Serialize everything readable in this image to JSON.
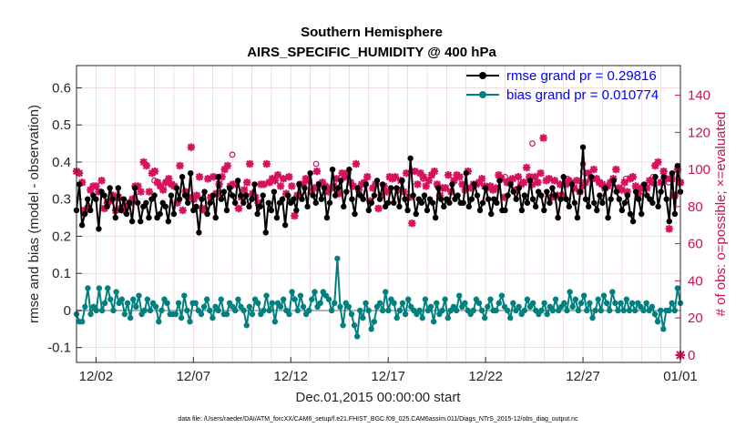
{
  "chart_data": {
    "type": "line",
    "title": "Southern Hemisphere",
    "subtitle": "AIRS_SPECIFIC_HUMIDITY @ 400 hPa",
    "xlabel": "Dec.01,2015 00:00:00 start",
    "ylabel": "rmse and bias (model - observation)",
    "ylabel_right": "# of obs: o=possible; ×=evaluated",
    "ylim": [
      -0.14,
      0.66
    ],
    "ylim_right": [
      -4,
      156
    ],
    "xlim": [
      0,
      31
    ],
    "left_ticks": [
      "-0.1",
      "0",
      "0.1",
      "0.2",
      "0.3",
      "0.4",
      "0.5",
      "0.6"
    ],
    "right_ticks": [
      "0",
      "20",
      "40",
      "60",
      "80",
      "100",
      "120",
      "140"
    ],
    "x_tick_labels": [
      "12/02",
      "12/07",
      "12/12",
      "12/17",
      "12/22",
      "12/27",
      "01/01"
    ],
    "x_tick_days": [
      1,
      6,
      11,
      16,
      21,
      26,
      31
    ],
    "grid": true,
    "legend_position": "top-right",
    "legend": [
      "rmse grand pr = 0.29816",
      "bias grand pr = 0.010774"
    ],
    "colors": {
      "rmse": "#000000",
      "bias": "#00807f",
      "obs": "#d6115e",
      "zero_line": "#b3b3b3",
      "grid": "#e8c9d3"
    },
    "rmse": [
      0.27,
      0.34,
      0.23,
      0.26,
      0.3,
      0.27,
      0.31,
      0.3,
      0.22,
      0.32,
      0.31,
      0.28,
      0.33,
      0.3,
      0.25,
      0.33,
      0.27,
      0.3,
      0.26,
      0.29,
      0.24,
      0.33,
      0.29,
      0.24,
      0.28,
      0.29,
      0.25,
      0.3,
      0.31,
      0.25,
      0.26,
      0.29,
      0.28,
      0.24,
      0.31,
      0.26,
      0.33,
      0.3,
      0.36,
      0.31,
      0.29,
      0.37,
      0.27,
      0.28,
      0.21,
      0.3,
      0.32,
      0.26,
      0.29,
      0.31,
      0.25,
      0.36,
      0.3,
      0.32,
      0.27,
      0.33,
      0.31,
      0.29,
      0.35,
      0.31,
      0.29,
      0.31,
      0.28,
      0.3,
      0.34,
      0.26,
      0.28,
      0.31,
      0.21,
      0.29,
      0.27,
      0.32,
      0.25,
      0.29,
      0.3,
      0.23,
      0.31,
      0.29,
      0.3,
      0.27,
      0.34,
      0.3,
      0.33,
      0.28,
      0.37,
      0.31,
      0.29,
      0.34,
      0.3,
      0.33,
      0.25,
      0.29,
      0.38,
      0.31,
      0.33,
      0.35,
      0.28,
      0.32,
      0.38,
      0.3,
      0.26,
      0.33,
      0.31,
      0.3,
      0.34,
      0.27,
      0.29,
      0.31,
      0.35,
      0.3,
      0.34,
      0.28,
      0.29,
      0.33,
      0.29,
      0.33,
      0.28,
      0.35,
      0.3,
      0.27,
      0.41,
      0.31,
      0.26,
      0.3,
      0.29,
      0.31,
      0.27,
      0.3,
      0.29,
      0.25,
      0.33,
      0.3,
      0.28,
      0.3,
      0.29,
      0.34,
      0.3,
      0.31,
      0.29,
      0.29,
      0.37,
      0.28,
      0.3,
      0.34,
      0.31,
      0.27,
      0.29,
      0.33,
      0.3,
      0.26,
      0.3,
      0.29,
      0.35,
      0.27,
      0.27,
      0.31,
      0.34,
      0.32,
      0.3,
      0.33,
      0.27,
      0.31,
      0.29,
      0.35,
      0.3,
      0.28,
      0.32,
      0.31,
      0.27,
      0.32,
      0.29,
      0.33,
      0.31,
      0.25,
      0.3,
      0.36,
      0.3,
      0.28,
      0.34,
      0.29,
      0.25,
      0.32,
      0.44,
      0.3,
      0.28,
      0.36,
      0.29,
      0.27,
      0.31,
      0.29,
      0.33,
      0.25,
      0.3,
      0.35,
      0.32,
      0.3,
      0.27,
      0.29,
      0.31,
      0.26,
      0.24,
      0.32,
      0.3,
      0.26,
      0.34,
      0.31,
      0.3,
      0.29,
      0.36,
      0.28,
      0.32,
      0.36,
      0.3,
      0.24,
      0.37,
      0.26,
      0.39,
      0.32
    ],
    "bias": [
      -0.01,
      -0.03,
      -0.03,
      0.01,
      0.06,
      -0.01,
      0.01,
      0.0,
      0.06,
      0.0,
      0.02,
      0.06,
      0.03,
      0.0,
      0.05,
      0.02,
      0.03,
      -0.01,
      0.02,
      -0.02,
      0.03,
      0.01,
      0.04,
      -0.01,
      0.0,
      0.03,
      0.0,
      0.02,
      0.01,
      -0.03,
      0.0,
      0.03,
      0.02,
      -0.01,
      -0.01,
      -0.01,
      0.02,
      -0.02,
      0.04,
      0.0,
      -0.03,
      0.02,
      0.02,
      0.0,
      -0.01,
      0.01,
      0.03,
      0.0,
      -0.02,
      0.01,
      0.0,
      0.03,
      -0.01,
      -0.01,
      0.02,
      0.01,
      0.0,
      0.03,
      0.01,
      0.0,
      -0.04,
      0.01,
      -0.01,
      0.03,
      0.02,
      -0.01,
      0.0,
      0.04,
      0.0,
      0.02,
      -0.03,
      0.02,
      0.01,
      0.03,
      0.0,
      -0.01,
      0.05,
      0.03,
      0.0,
      0.04,
      0.01,
      -0.01,
      0.0,
      0.03,
      0.05,
      0.01,
      0.02,
      0.05,
      0.04,
      0.03,
      0.0,
      0.02,
      0.14,
      0.01,
      -0.04,
      0.02,
      0.01,
      -0.01,
      -0.04,
      -0.07,
      0.0,
      -0.02,
      0.02,
      0.0,
      -0.05,
      -0.03,
      0.01,
      0.02,
      0.0,
      0.05,
      0.0,
      0.03,
      0.02,
      -0.02,
      0.0,
      0.02,
      -0.01,
      0.03,
      0.01,
      0.0,
      -0.01,
      0.0,
      -0.02,
      0.03,
      0.0,
      0.01,
      -0.03,
      0.02,
      -0.01,
      0.0,
      0.03,
      -0.02,
      0.0,
      0.01,
      0.0,
      0.04,
      0.01,
      0.02,
      0.0,
      -0.01,
      0.0,
      0.03,
      0.02,
      0.0,
      -0.02,
      0.01,
      0.03,
      0.0,
      0.0,
      0.02,
      0.04,
      0.01,
      0.0,
      -0.02,
      0.02,
      0.0,
      0.01,
      -0.01,
      0.0,
      0.03,
      0.01,
      0.02,
      0.0,
      -0.01,
      0.0,
      0.02,
      -0.01,
      0.01,
      0.0,
      0.03,
      0.0,
      0.01,
      0.02,
      0.0,
      0.05,
      0.01,
      0.03,
      0.0,
      0.02,
      0.04,
      0.0,
      0.02,
      -0.02,
      0.0,
      0.03,
      0.0,
      0.04,
      0.02,
      0.0,
      0.05,
      0.02,
      0.0,
      0.02,
      0.0,
      0.03,
      0.0,
      0.02,
      0.0,
      0.02,
      0.01,
      0.0,
      0.02,
      0.0,
      0.01,
      -0.01,
      -0.03,
      0.0,
      -0.05,
      0.0,
      0.0,
      0.02,
      0.0,
      0.06,
      0.02
    ],
    "obs_evaluated": [
      99,
      98,
      93,
      78,
      79,
      89,
      91,
      91,
      88,
      94,
      79,
      82,
      83,
      86,
      78,
      85,
      79,
      78,
      80,
      82,
      84,
      91,
      91,
      88,
      104,
      102,
      88,
      98,
      99,
      93,
      91,
      89,
      93,
      95,
      92,
      91,
      82,
      102,
      78,
      88,
      85,
      112,
      84,
      86,
      96,
      79,
      78,
      95,
      85,
      96,
      87,
      92,
      96,
      100,
      102,
      91,
      92,
      92,
      79,
      85,
      89,
      93,
      103,
      87,
      85,
      82,
      92,
      92,
      103,
      93,
      95,
      94,
      97,
      91,
      95,
      87,
      96,
      91,
      75,
      86,
      92,
      92,
      95,
      94,
      88,
      90,
      99,
      92,
      93,
      91,
      88,
      90,
      91,
      95,
      87,
      98,
      96,
      98,
      93,
      91,
      103,
      89,
      92,
      93,
      96,
      83,
      90,
      92,
      79,
      86,
      91,
      88,
      96,
      95,
      96,
      89,
      94,
      88,
      98,
      85,
      71,
      99,
      92,
      98,
      96,
      91,
      94,
      97,
      99,
      92,
      86,
      90,
      90,
      97,
      88,
      94,
      97,
      96,
      92,
      89,
      99,
      90,
      92,
      92,
      93,
      95,
      91,
      90,
      91,
      89,
      90,
      97,
      95,
      85,
      93,
      94,
      95,
      89,
      96,
      92,
      93,
      101,
      96,
      92,
      96,
      93,
      98,
      117,
      94,
      95,
      85,
      94,
      86,
      92,
      86,
      92,
      94,
      93,
      90,
      94,
      88,
      91,
      93,
      98,
      95,
      100,
      95,
      93,
      92,
      90,
      91,
      93,
      95,
      100,
      90,
      89,
      93,
      88,
      95,
      96,
      91,
      87,
      90,
      91,
      90,
      94,
      93,
      102,
      104,
      93,
      99,
      95,
      68,
      95,
      86,
      100,
      93
    ],
    "obs_possible_markers": [
      [
        4.0,
        94
      ],
      [
        8.0,
        108
      ],
      [
        12.3,
        103
      ],
      [
        17.8,
        95
      ],
      [
        22.0,
        96
      ],
      [
        23.4,
        114
      ],
      [
        25.2,
        95
      ],
      [
        26.0,
        103
      ],
      [
        26.0,
        99
      ],
      [
        28.2,
        95
      ],
      [
        29.6,
        96
      ],
      [
        30.4,
        93
      ]
    ]
  },
  "footnote": "data file: /Users/raeder/DAI/ATM_forcXX/CAM6_setup/f.e21.FHIST_BGC.f09_025.CAM6assim.011/Diags_NTrS_2015-12/obs_diag_output.nc"
}
